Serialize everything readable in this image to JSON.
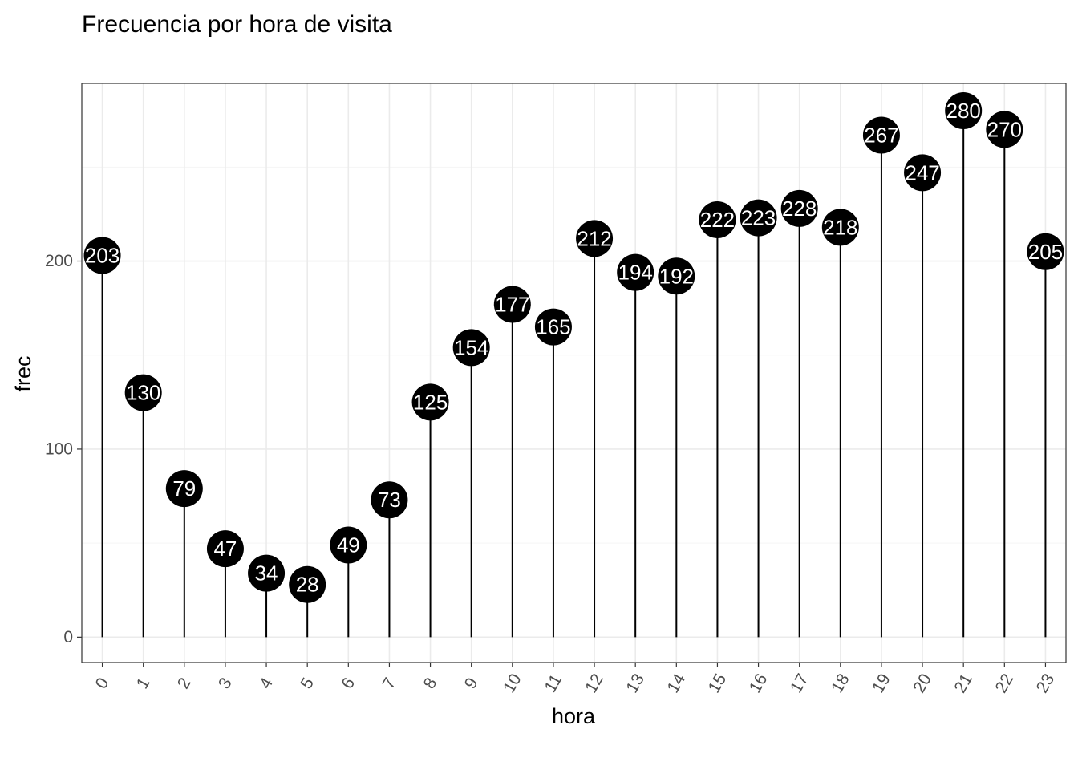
{
  "chart_data": {
    "type": "lollipop",
    "title": "Frecuencia por hora de visita",
    "xlabel": "hora",
    "ylabel": "frec",
    "categories": [
      "0",
      "1",
      "2",
      "3",
      "4",
      "5",
      "6",
      "7",
      "8",
      "9",
      "10",
      "11",
      "12",
      "13",
      "14",
      "15",
      "16",
      "17",
      "18",
      "19",
      "20",
      "21",
      "22",
      "23"
    ],
    "values": [
      203,
      130,
      79,
      47,
      34,
      28,
      49,
      73,
      125,
      154,
      177,
      165,
      212,
      194,
      192,
      222,
      223,
      228,
      218,
      267,
      247,
      280,
      270,
      205
    ],
    "data_labels": [
      "203",
      "130",
      "79",
      "47",
      "34",
      "28",
      "49",
      "73",
      "125",
      "154",
      "177",
      "165",
      "212",
      "194",
      "192",
      "222",
      "223",
      "228",
      "218",
      "267",
      "247",
      "280",
      "270",
      "205"
    ],
    "y_ticks": [
      0,
      100,
      200
    ],
    "y_tick_labels": [
      "0",
      "100",
      "200"
    ],
    "ylim": [
      -13.5,
      294.5
    ],
    "grid": true,
    "theme": "bw",
    "x_tick_rotation_deg": -60,
    "colors": {
      "stem": "#000000",
      "point": "#000000",
      "label_text": "#ffffff",
      "grid_major": "#ebebeb",
      "grid_minor": "#f5f5f5",
      "panel_border": "#333333",
      "tick_text": "#4d4d4d"
    }
  }
}
